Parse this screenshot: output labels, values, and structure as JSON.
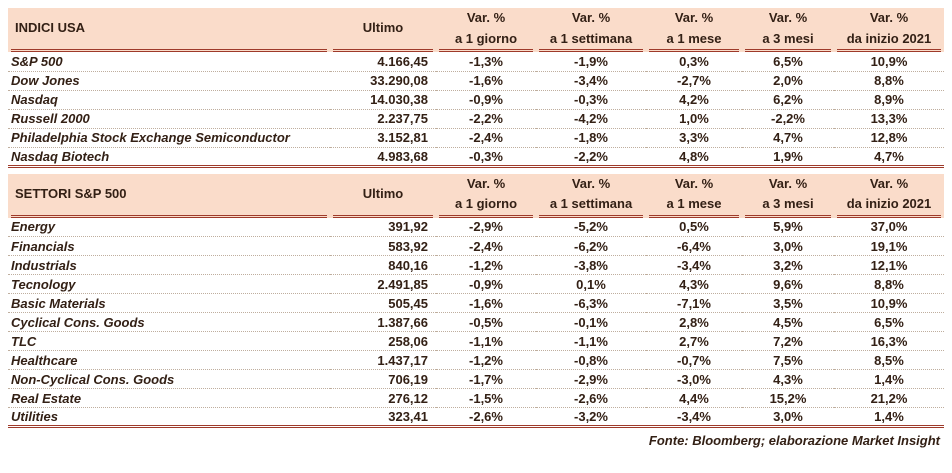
{
  "colors": {
    "accent": "#9e3a2a",
    "header_bg": "#fadcca",
    "text": "#332015"
  },
  "columns": {
    "ultimo_label": "Ultimo",
    "var_headers": [
      {
        "l1": "Var. %",
        "l2": "a 1 giorno"
      },
      {
        "l1": "Var. %",
        "l2": "a 1 settimana"
      },
      {
        "l1": "Var. %",
        "l2": "a 1 mese"
      },
      {
        "l1": "Var. %",
        "l2": "a 3 mesi"
      },
      {
        "l1": "Var. %",
        "l2": "da inizio 2021"
      }
    ]
  },
  "tables": [
    {
      "title": "INDICI USA",
      "rows": [
        {
          "label": "S&P 500",
          "ultimo": "4.166,45",
          "vars": [
            "-1,3%",
            "-1,9%",
            "0,3%",
            "6,5%",
            "10,9%"
          ]
        },
        {
          "label": "Dow Jones",
          "ultimo": "33.290,08",
          "vars": [
            "-1,6%",
            "-3,4%",
            "-2,7%",
            "2,0%",
            "8,8%"
          ]
        },
        {
          "label": "Nasdaq",
          "ultimo": "14.030,38",
          "vars": [
            "-0,9%",
            "-0,3%",
            "4,2%",
            "6,2%",
            "8,9%"
          ]
        },
        {
          "label": "Russell 2000",
          "ultimo": "2.237,75",
          "vars": [
            "-2,2%",
            "-4,2%",
            "1,0%",
            "-2,2%",
            "13,3%"
          ]
        },
        {
          "label": "Philadelphia Stock Exchange Semiconductor",
          "ultimo": "3.152,81",
          "vars": [
            "-2,4%",
            "-1,8%",
            "3,3%",
            "4,7%",
            "12,8%"
          ]
        },
        {
          "label": "Nasdaq Biotech",
          "ultimo": "4.983,68",
          "vars": [
            "-0,3%",
            "-2,2%",
            "4,8%",
            "1,9%",
            "4,7%"
          ]
        }
      ]
    },
    {
      "title": "SETTORI S&P 500",
      "rows": [
        {
          "label": "Energy",
          "ultimo": "391,92",
          "vars": [
            "-2,9%",
            "-5,2%",
            "0,5%",
            "5,9%",
            "37,0%"
          ]
        },
        {
          "label": "Financials",
          "ultimo": "583,92",
          "vars": [
            "-2,4%",
            "-6,2%",
            "-6,4%",
            "3,0%",
            "19,1%"
          ]
        },
        {
          "label": "Industrials",
          "ultimo": "840,16",
          "vars": [
            "-1,2%",
            "-3,8%",
            "-3,4%",
            "3,2%",
            "12,1%"
          ]
        },
        {
          "label": "Tecnology",
          "ultimo": "2.491,85",
          "vars": [
            "-0,9%",
            "0,1%",
            "4,3%",
            "9,6%",
            "8,8%"
          ]
        },
        {
          "label": "Basic Materials",
          "ultimo": "505,45",
          "vars": [
            "-1,6%",
            "-6,3%",
            "-7,1%",
            "3,5%",
            "10,9%"
          ]
        },
        {
          "label": "Cyclical Cons. Goods",
          "ultimo": "1.387,66",
          "vars": [
            "-0,5%",
            "-0,1%",
            "2,8%",
            "4,5%",
            "6,5%"
          ]
        },
        {
          "label": "TLC",
          "ultimo": "258,06",
          "vars": [
            "-1,1%",
            "-1,1%",
            "2,7%",
            "7,2%",
            "16,3%"
          ]
        },
        {
          "label": "Healthcare",
          "ultimo": "1.437,17",
          "vars": [
            "-1,2%",
            "-0,8%",
            "-0,7%",
            "7,5%",
            "8,5%"
          ]
        },
        {
          "label": "Non-Cyclical Cons. Goods",
          "ultimo": "706,19",
          "vars": [
            "-1,7%",
            "-2,9%",
            "-3,0%",
            "4,3%",
            "1,4%"
          ]
        },
        {
          "label": "Real Estate",
          "ultimo": "276,12",
          "vars": [
            "-1,5%",
            "-2,6%",
            "4,4%",
            "15,2%",
            "21,2%"
          ]
        },
        {
          "label": "Utilities",
          "ultimo": "323,41",
          "vars": [
            "-2,6%",
            "-3,2%",
            "-3,4%",
            "3,0%",
            "1,4%"
          ]
        }
      ]
    }
  ],
  "footer": "Fonte: Bloomberg; elaborazione Market Insight"
}
